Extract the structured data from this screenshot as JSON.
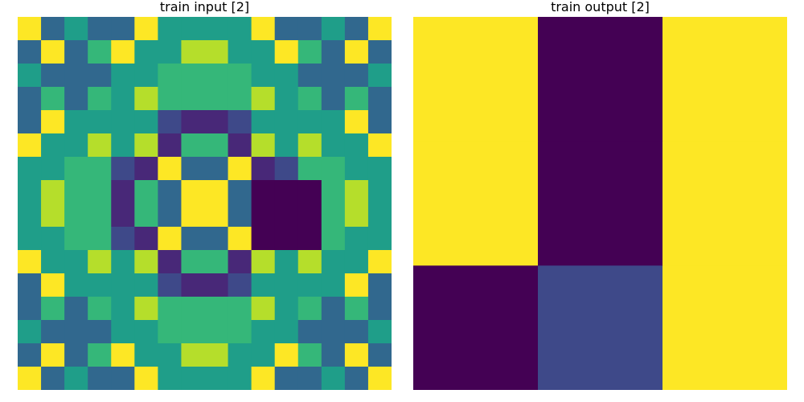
{
  "colors": {
    "0": "#440154",
    "1": "#482878",
    "2": "#3e4989",
    "3": "#31688e",
    "4": "#26828e",
    "5": "#1f9e89",
    "6": "#35b779",
    "7": "#b5de2b",
    "8": "#fde725"
  },
  "panels": [
    {
      "title": "train input [2]",
      "grid": [
        [
          8,
          3,
          5,
          3,
          3,
          8,
          5,
          5,
          5,
          5,
          8,
          3,
          3,
          5,
          3,
          8
        ],
        [
          3,
          8,
          3,
          6,
          8,
          5,
          5,
          7,
          7,
          5,
          5,
          8,
          6,
          3,
          8,
          3
        ],
        [
          5,
          3,
          3,
          3,
          5,
          5,
          6,
          6,
          6,
          6,
          5,
          5,
          3,
          3,
          3,
          5
        ],
        [
          3,
          6,
          3,
          6,
          5,
          7,
          6,
          6,
          6,
          6,
          7,
          5,
          6,
          3,
          6,
          3
        ],
        [
          3,
          8,
          5,
          5,
          5,
          5,
          2,
          1,
          1,
          2,
          5,
          5,
          5,
          5,
          8,
          3
        ],
        [
          8,
          5,
          5,
          7,
          5,
          7,
          1,
          6,
          6,
          1,
          7,
          5,
          7,
          5,
          5,
          8
        ],
        [
          5,
          5,
          6,
          6,
          2,
          1,
          8,
          3,
          3,
          8,
          1,
          2,
          6,
          6,
          5,
          5
        ],
        [
          5,
          7,
          6,
          6,
          1,
          6,
          3,
          8,
          8,
          3,
          0,
          0,
          0,
          6,
          7,
          5
        ],
        [
          5,
          7,
          6,
          6,
          1,
          6,
          3,
          8,
          8,
          3,
          0,
          0,
          0,
          6,
          7,
          5
        ],
        [
          5,
          5,
          6,
          6,
          2,
          1,
          8,
          3,
          3,
          8,
          0,
          0,
          0,
          6,
          5,
          5
        ],
        [
          8,
          5,
          5,
          7,
          5,
          7,
          1,
          6,
          6,
          1,
          7,
          5,
          7,
          5,
          5,
          8
        ],
        [
          3,
          8,
          5,
          5,
          5,
          5,
          2,
          1,
          1,
          2,
          5,
          5,
          5,
          5,
          8,
          3
        ],
        [
          3,
          6,
          3,
          6,
          5,
          7,
          6,
          6,
          6,
          6,
          7,
          5,
          6,
          3,
          6,
          3
        ],
        [
          5,
          3,
          3,
          3,
          5,
          5,
          6,
          6,
          6,
          6,
          5,
          5,
          3,
          3,
          3,
          5
        ],
        [
          3,
          8,
          3,
          6,
          8,
          5,
          5,
          7,
          7,
          5,
          5,
          8,
          6,
          3,
          8,
          3
        ],
        [
          8,
          3,
          5,
          3,
          3,
          8,
          5,
          5,
          5,
          5,
          8,
          3,
          3,
          5,
          3,
          8
        ]
      ]
    },
    {
      "title": "train output [2]",
      "grid": [
        [
          8,
          0,
          8
        ],
        [
          8,
          0,
          8
        ],
        [
          0,
          2,
          8
        ]
      ]
    }
  ]
}
